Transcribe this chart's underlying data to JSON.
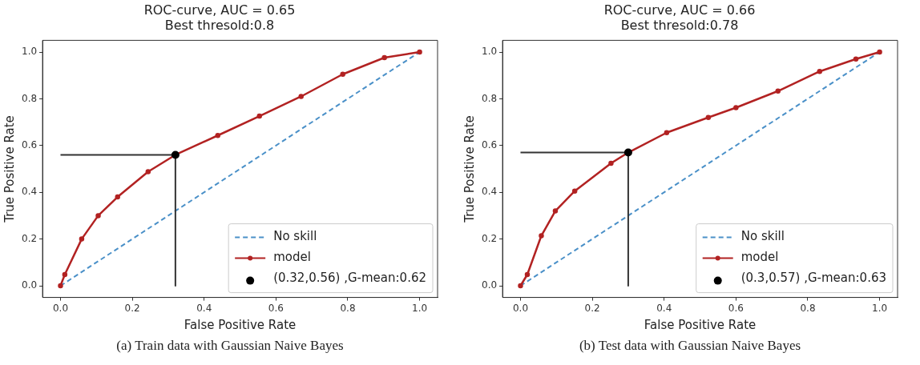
{
  "chart_data": [
    {
      "type": "line",
      "title": "ROC-curve, AUC = 0.65",
      "subtitle": "Best thresold:0.8",
      "xlabel": "False Positive Rate",
      "ylabel": "True Positive Rate",
      "xlim": [
        -0.05,
        1.05
      ],
      "ylim": [
        -0.05,
        1.05
      ],
      "xticks": [
        {
          "value": 0,
          "label": "0.0"
        },
        {
          "value": 0.2,
          "label": "0.2"
        },
        {
          "value": 0.4,
          "label": "0.4"
        },
        {
          "value": 0.6,
          "label": "0.6"
        },
        {
          "value": 0.8,
          "label": "0.8"
        },
        {
          "value": 1,
          "label": "1.0"
        }
      ],
      "yticks": [
        {
          "value": 0,
          "label": "0.0"
        },
        {
          "value": 0.2,
          "label": "0.2"
        },
        {
          "value": 0.4,
          "label": "0.4"
        },
        {
          "value": 0.6,
          "label": "0.6"
        },
        {
          "value": 0.8,
          "label": "0.8"
        },
        {
          "value": 1,
          "label": "1.0"
        }
      ],
      "legend": "bottom right",
      "annotations": [
        "(a) Train data with Gaussian Naive Bayes"
      ],
      "series": [
        {
          "name": "No skill",
          "type": "line",
          "color": "#4a90c8",
          "line_style": "dashed",
          "marker": "none",
          "x": [
            0,
            1
          ],
          "values": [
            0,
            1
          ]
        },
        {
          "name": "model",
          "type": "line",
          "color": "#b22222",
          "line_style": "solid",
          "marker": "circle",
          "x": [
            0,
            0.012,
            0.059,
            0.105,
            0.159,
            0.244,
            0.32,
            0.438,
            0.554,
            0.67,
            0.786,
            0.902,
            1
          ],
          "values": [
            0,
            0.048,
            0.2,
            0.3,
            0.38,
            0.488,
            0.56,
            0.643,
            0.726,
            0.81,
            0.905,
            0.976,
            1
          ]
        },
        {
          "type": "line",
          "color": "#333333",
          "line_style": "solid",
          "marker": "none",
          "x": [
            0,
            0.32,
            0.32
          ],
          "values": [
            0.56,
            0.56,
            0
          ]
        },
        {
          "name": "(0.32,0.56) ,G-mean:0.62",
          "type": "scatter",
          "color": "#000000",
          "marker": "circle",
          "x": [
            0.32
          ],
          "values": [
            0.56
          ]
        }
      ]
    },
    {
      "type": "line",
      "title": "ROC-curve, AUC = 0.66",
      "subtitle": "Best thresold:0.78",
      "xlabel": "False Positive Rate",
      "ylabel": "True Positive Rate",
      "xlim": [
        -0.05,
        1.05
      ],
      "ylim": [
        -0.05,
        1.05
      ],
      "xticks": [
        {
          "value": 0,
          "label": "0.0"
        },
        {
          "value": 0.2,
          "label": "0.2"
        },
        {
          "value": 0.4,
          "label": "0.4"
        },
        {
          "value": 0.6,
          "label": "0.6"
        },
        {
          "value": 0.8,
          "label": "0.8"
        },
        {
          "value": 1,
          "label": "1.0"
        }
      ],
      "yticks": [
        {
          "value": 0,
          "label": "0.0"
        },
        {
          "value": 0.2,
          "label": "0.2"
        },
        {
          "value": 0.4,
          "label": "0.4"
        },
        {
          "value": 0.6,
          "label": "0.6"
        },
        {
          "value": 0.8,
          "label": "0.8"
        },
        {
          "value": 1,
          "label": "1.0"
        }
      ],
      "legend": "bottom right",
      "annotations": [
        "(b) Test data with Gaussian Naive Bayes"
      ],
      "series": [
        {
          "name": "No skill",
          "type": "line",
          "color": "#4a90c8",
          "line_style": "dashed",
          "marker": "none",
          "x": [
            0,
            1
          ],
          "values": [
            0,
            1
          ]
        },
        {
          "name": "model",
          "type": "line",
          "color": "#b22222",
          "line_style": "solid",
          "marker": "circle",
          "x": [
            0,
            0.019,
            0.058,
            0.097,
            0.151,
            0.252,
            0.3,
            0.407,
            0.523,
            0.6,
            0.717,
            0.833,
            0.934,
            1
          ],
          "values": [
            0,
            0.048,
            0.214,
            0.32,
            0.405,
            0.524,
            0.57,
            0.655,
            0.72,
            0.762,
            0.833,
            0.917,
            0.97,
            1
          ]
        },
        {
          "type": "line",
          "color": "#333333",
          "line_style": "solid",
          "marker": "none",
          "x": [
            0,
            0.3,
            0.3
          ],
          "values": [
            0.57,
            0.57,
            0
          ]
        },
        {
          "name": "(0.3,0.57) ,G-mean:0.63",
          "type": "scatter",
          "color": "#000000",
          "marker": "circle",
          "x": [
            0.3
          ],
          "values": [
            0.57
          ]
        }
      ]
    }
  ]
}
